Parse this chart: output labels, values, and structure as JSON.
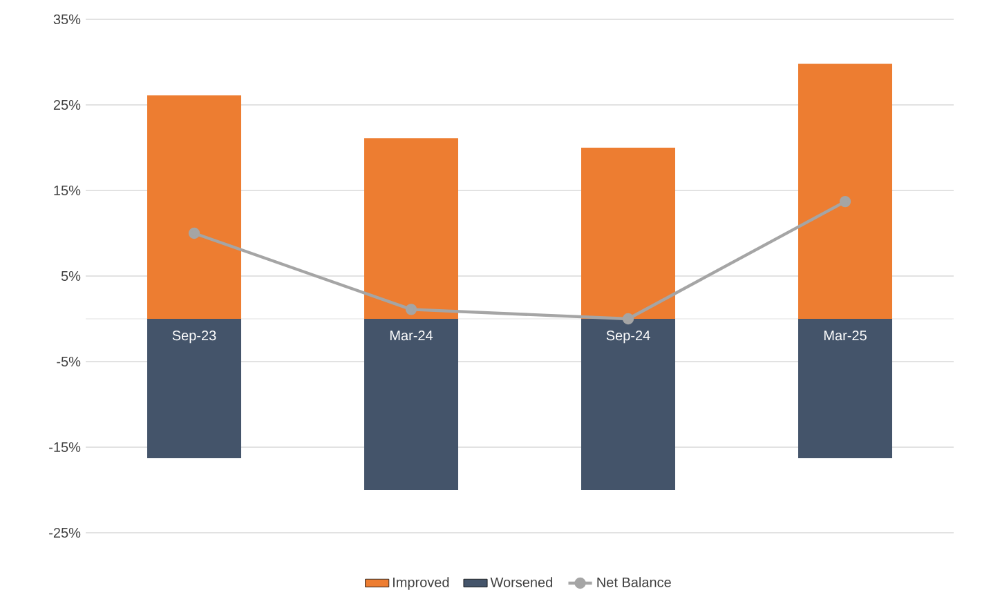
{
  "chart_data": {
    "type": "bar",
    "stacked": true,
    "categories": [
      "Sep-23",
      "Mar-24",
      "Sep-24",
      "Mar-25"
    ],
    "series": [
      {
        "name": "Improved",
        "color": "#ed7d31",
        "values": [
          26.1,
          21.1,
          20,
          29.8
        ]
      },
      {
        "name": "Worsened",
        "color": "#44546a",
        "values": [
          -16.3,
          -20,
          -20,
          -16.3
        ]
      },
      {
        "name": "Net Balance",
        "type": "line",
        "color": "#a5a5a5",
        "marker": "circle",
        "values": [
          10,
          1.1,
          0,
          13.7
        ]
      }
    ],
    "ylim": [
      -25,
      35
    ],
    "yticks": [
      {
        "value": -25,
        "label": "-25%"
      },
      {
        "value": -15,
        "label": "-15%"
      },
      {
        "value": -5,
        "label": "-5%"
      },
      {
        "value": 5,
        "label": "5%"
      },
      {
        "value": 15,
        "label": "15%"
      },
      {
        "value": 25,
        "label": "25%"
      },
      {
        "value": 35,
        "label": "35%"
      }
    ],
    "grid": "y",
    "legend": "bottom"
  }
}
